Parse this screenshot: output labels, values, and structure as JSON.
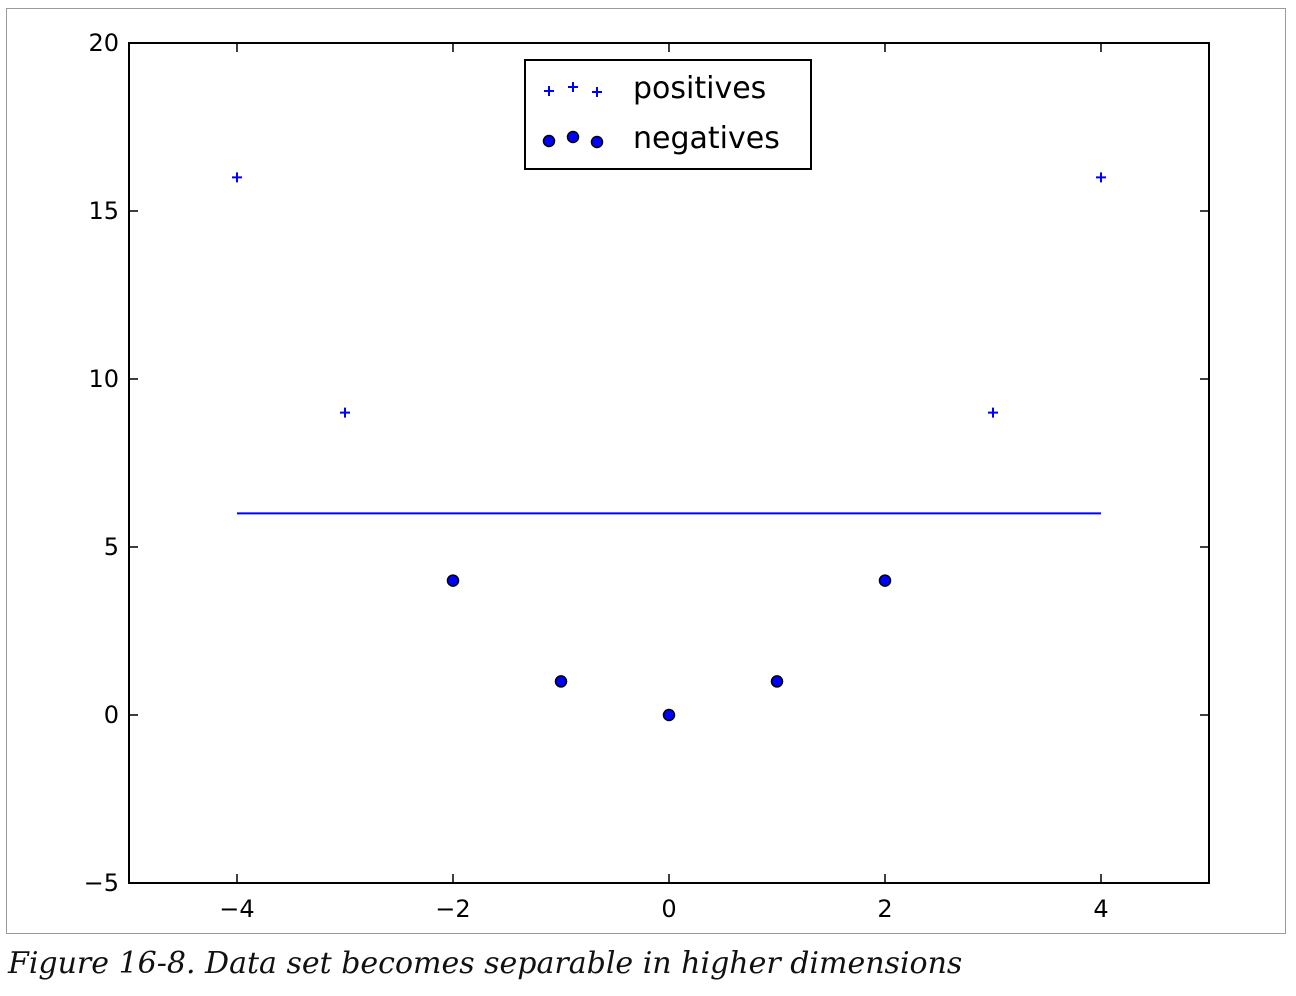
{
  "caption": "Figure 16-8. Data set becomes separable in higher dimensions",
  "colors": {
    "positives": "#0000ff",
    "negatives_fill": "#0000ff",
    "negatives_edge": "#000000",
    "boundary": "#0000ff",
    "axes": "#000000"
  },
  "chart_data": {
    "type": "scatter",
    "title": "",
    "xlabel": "",
    "ylabel": "",
    "xlim": [
      -5,
      5
    ],
    "ylim": [
      -5,
      20
    ],
    "xticks": [
      -4,
      -2,
      0,
      2,
      4
    ],
    "xtick_labels": [
      "−4",
      "−2",
      "0",
      "2",
      "4"
    ],
    "yticks": [
      -5,
      0,
      5,
      10,
      15,
      20
    ],
    "ytick_labels": [
      "−5",
      "0",
      "5",
      "10",
      "15",
      "20"
    ],
    "grid": false,
    "legend_position": "upper-center",
    "series": [
      {
        "name": "positives",
        "marker": "plus",
        "x": [
          -4,
          -3,
          3,
          4
        ],
        "y": [
          16,
          9,
          9,
          16
        ]
      },
      {
        "name": "negatives",
        "marker": "circle",
        "x": [
          -2,
          -1,
          0,
          1,
          2
        ],
        "y": [
          4,
          1,
          0,
          1,
          4
        ]
      },
      {
        "name": "",
        "marker": "line",
        "x": [
          -4,
          4
        ],
        "y": [
          6,
          6
        ]
      }
    ]
  }
}
